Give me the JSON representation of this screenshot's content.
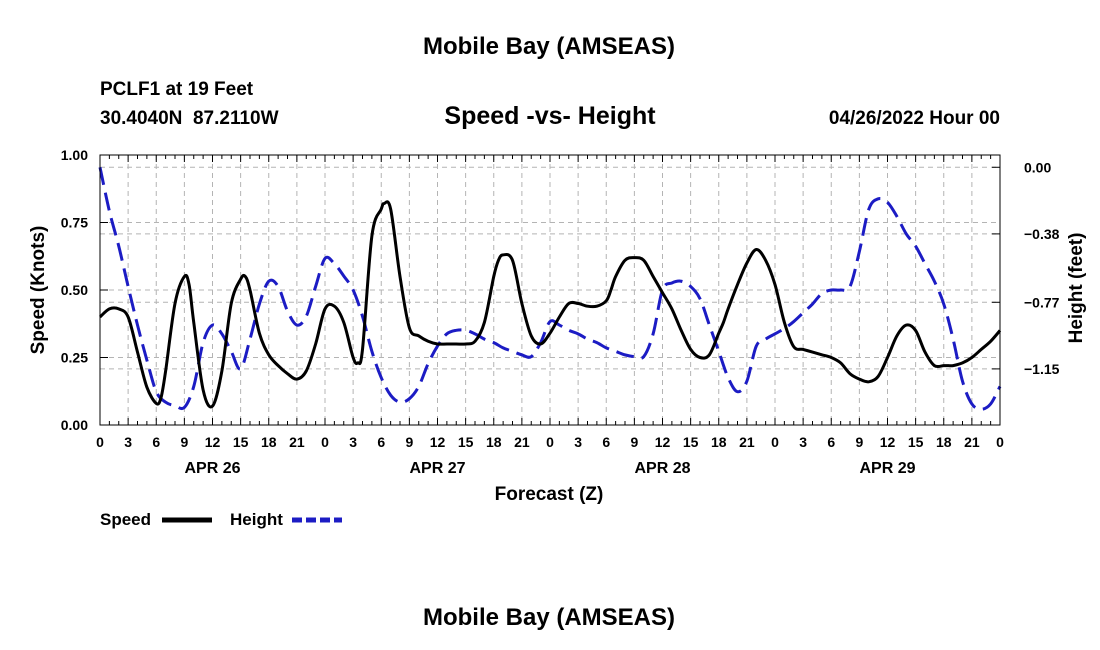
{
  "page": {
    "title_top": "Mobile Bay (AMSEAS)",
    "title_bottom": "Mobile Bay (AMSEAS)",
    "station": "PCLF1 at 19 Feet",
    "coords": "30.4040N  87.2110W",
    "subtitle": "Speed -vs- Height",
    "datetime": "04/26/2022 Hour 00"
  },
  "chart_data": {
    "type": "line",
    "title": "Speed -vs- Height",
    "xlabel": "Forecast (Z)",
    "ylabel": "Speed (Knots)",
    "y2label": "Height (feet)",
    "x_unit": "hours from 2022-04-26 00Z",
    "xlim": [
      0,
      96
    ],
    "ylim": [
      0,
      1.0
    ],
    "y2lim": [
      -1.47,
      0.07
    ],
    "x_ticks": [
      0,
      3,
      6,
      9,
      12,
      15,
      18,
      21,
      24,
      27,
      30,
      33,
      36,
      39,
      42,
      45,
      48,
      51,
      54,
      57,
      60,
      63,
      66,
      69,
      72,
      75,
      78,
      81,
      84,
      87,
      90,
      93,
      96
    ],
    "x_tick_labels": [
      "0",
      "3",
      "6",
      "9",
      "12",
      "15",
      "18",
      "21",
      "0",
      "3",
      "6",
      "9",
      "12",
      "15",
      "18",
      "21",
      "0",
      "3",
      "6",
      "9",
      "12",
      "15",
      "18",
      "21",
      "0",
      "3",
      "6",
      "9",
      "12",
      "15",
      "18",
      "21",
      "0"
    ],
    "day_labels": [
      {
        "x": 12,
        "label": "APR 26"
      },
      {
        "x": 36,
        "label": "APR 27"
      },
      {
        "x": 60,
        "label": "APR 28"
      },
      {
        "x": 84,
        "label": "APR 29"
      }
    ],
    "y_ticks": [
      0.0,
      0.25,
      0.5,
      0.75,
      1.0
    ],
    "y_tick_labels": [
      "0.00",
      "0.25",
      "0.50",
      "0.75",
      "1.00"
    ],
    "y2_ticks": [
      0.0,
      -0.38,
      -0.77,
      -1.15
    ],
    "y2_tick_labels": [
      "0.00",
      "−0.38",
      "−0.77",
      "−1.15"
    ],
    "grid": true,
    "legend_position": "bottom-left",
    "series": [
      {
        "name": "Speed",
        "axis": "left",
        "color": "#000000",
        "dash": "solid",
        "x": [
          0,
          1,
          2,
          3,
          4,
          5,
          6,
          6.5,
          7,
          8,
          9,
          9.5,
          10,
          11,
          12,
          13,
          14,
          15,
          15.5,
          16,
          17,
          18,
          19,
          20,
          21,
          22,
          23,
          24,
          25,
          26,
          27,
          27.5,
          28,
          29,
          30,
          30.3,
          31,
          32,
          33,
          34,
          35,
          36,
          37,
          38,
          39,
          40,
          41,
          42,
          42.5,
          43,
          44,
          45,
          46,
          47,
          48,
          49,
          50,
          51,
          52,
          53,
          54,
          54.5,
          55,
          56,
          57,
          58,
          59,
          60,
          61,
          62,
          63,
          64,
          65,
          66,
          66.5,
          67,
          68,
          69,
          70,
          71,
          72,
          73,
          74,
          75,
          76,
          77,
          78,
          79,
          80,
          81,
          82,
          83,
          84,
          85,
          86,
          87,
          88,
          89,
          90,
          90.5,
          91,
          92,
          93,
          94,
          95,
          96
        ],
        "y": [
          0.4,
          0.43,
          0.43,
          0.4,
          0.27,
          0.14,
          0.08,
          0.1,
          0.2,
          0.45,
          0.55,
          0.52,
          0.38,
          0.13,
          0.07,
          0.2,
          0.45,
          0.54,
          0.55,
          0.5,
          0.34,
          0.26,
          0.22,
          0.19,
          0.17,
          0.2,
          0.3,
          0.43,
          0.44,
          0.38,
          0.25,
          0.23,
          0.28,
          0.7,
          0.8,
          0.82,
          0.8,
          0.55,
          0.36,
          0.33,
          0.31,
          0.3,
          0.3,
          0.3,
          0.3,
          0.31,
          0.38,
          0.55,
          0.61,
          0.63,
          0.61,
          0.45,
          0.33,
          0.3,
          0.34,
          0.4,
          0.45,
          0.45,
          0.44,
          0.44,
          0.46,
          0.5,
          0.55,
          0.61,
          0.62,
          0.61,
          0.55,
          0.49,
          0.43,
          0.35,
          0.28,
          0.25,
          0.26,
          0.34,
          0.38,
          0.43,
          0.52,
          0.6,
          0.65,
          0.61,
          0.52,
          0.38,
          0.29,
          0.28,
          0.27,
          0.26,
          0.25,
          0.23,
          0.19,
          0.17,
          0.16,
          0.18,
          0.25,
          0.33,
          0.37,
          0.35,
          0.27,
          0.22,
          0.22,
          0.22,
          0.22,
          0.23,
          0.25,
          0.28,
          0.31,
          0.35
        ]
      },
      {
        "name": "Height",
        "axis": "right",
        "color": "#1c1cc4",
        "dash": "dashed",
        "x": [
          0,
          1,
          2,
          3,
          4,
          5,
          6,
          7,
          8,
          9,
          10,
          11,
          12,
          13,
          14,
          15,
          16,
          17,
          18,
          19,
          20,
          21,
          22,
          23,
          24,
          25,
          26,
          27,
          28,
          29,
          30,
          31,
          32,
          33,
          34,
          35,
          36,
          37,
          38,
          39,
          40,
          41,
          42,
          43,
          44,
          45,
          46,
          47,
          48,
          49,
          50,
          51,
          52,
          53,
          54,
          55,
          56,
          57,
          58,
          59,
          60,
          61,
          62,
          63,
          64,
          65,
          66,
          67,
          68,
          69,
          70,
          71,
          72,
          73,
          74,
          75,
          76,
          77,
          78,
          79,
          80,
          81,
          82,
          83,
          84,
          85,
          86,
          87,
          88,
          89,
          90,
          91,
          92,
          93,
          94,
          95,
          96
        ],
        "y": [
          0.0,
          -0.25,
          -0.45,
          -0.68,
          -0.9,
          -1.1,
          -1.28,
          -1.34,
          -1.36,
          -1.37,
          -1.25,
          -1.0,
          -0.9,
          -0.95,
          -1.05,
          -1.15,
          -0.98,
          -0.78,
          -0.65,
          -0.68,
          -0.82,
          -0.9,
          -0.85,
          -0.68,
          -0.52,
          -0.55,
          -0.62,
          -0.7,
          -0.85,
          -1.05,
          -1.2,
          -1.3,
          -1.34,
          -1.32,
          -1.25,
          -1.12,
          -1.02,
          -0.95,
          -0.93,
          -0.93,
          -0.95,
          -0.98,
          -1.0,
          -1.03,
          -1.05,
          -1.07,
          -1.08,
          -1.0,
          -0.88,
          -0.9,
          -0.93,
          -0.95,
          -0.98,
          -1.0,
          -1.03,
          -1.05,
          -1.07,
          -1.08,
          -1.08,
          -0.95,
          -0.7,
          -0.66,
          -0.65,
          -0.68,
          -0.75,
          -0.9,
          -1.05,
          -1.2,
          -1.28,
          -1.22,
          -1.02,
          -0.98,
          -0.95,
          -0.92,
          -0.88,
          -0.83,
          -0.78,
          -0.72,
          -0.7,
          -0.7,
          -0.68,
          -0.48,
          -0.24,
          -0.18,
          -0.2,
          -0.28,
          -0.38,
          -0.45,
          -0.55,
          -0.65,
          -0.78,
          -0.98,
          -1.22,
          -1.35,
          -1.38,
          -1.35,
          -1.25
        ]
      }
    ]
  }
}
